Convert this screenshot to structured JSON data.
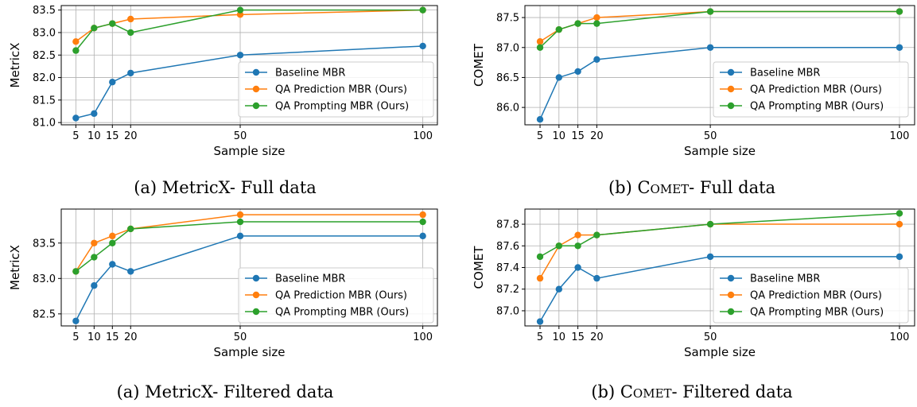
{
  "captions": [
    {
      "label": "(a)",
      "metric": "MetricX",
      "rest": "- Full data",
      "smallcaps": false
    },
    {
      "label": "(b)",
      "metric": "Comet",
      "rest": "- Full data",
      "smallcaps": true
    },
    {
      "label": "(a)",
      "metric": "MetricX",
      "rest": "- Filtered data",
      "smallcaps": false
    },
    {
      "label": "(b)",
      "metric": "Comet",
      "rest": "- Filtered data",
      "smallcaps": true
    }
  ],
  "colors": {
    "baseline": "#1f77b4",
    "qa_prediction": "#ff7f0e",
    "qa_prompting": "#2ca02c",
    "grid": "#b0b0b0"
  },
  "chart_data": [
    {
      "type": "line",
      "xlabel": "Sample size",
      "ylabel": "MetricX",
      "x": [
        5,
        10,
        15,
        20,
        50,
        100
      ],
      "xticks": [
        5,
        10,
        15,
        20,
        50,
        100
      ],
      "xlim": [
        1,
        104
      ],
      "ylim": [
        80.95,
        83.6
      ],
      "yticks": [
        "81.0",
        "81.5",
        "82.0",
        "82.5",
        "83.0",
        "83.5"
      ],
      "grid": true,
      "legend": "lower-right",
      "series": [
        {
          "name": "Baseline MBR",
          "values": [
            81.1,
            81.2,
            81.9,
            82.1,
            82.5,
            82.7
          ]
        },
        {
          "name": "QA Prediction MBR (Ours)",
          "values": [
            82.8,
            83.1,
            83.2,
            83.3,
            83.4,
            83.5
          ]
        },
        {
          "name": "QA Prompting MBR (Ours)",
          "values": [
            82.6,
            83.1,
            83.2,
            83.0,
            83.5,
            83.5
          ]
        }
      ]
    },
    {
      "type": "line",
      "xlabel": "Sample size",
      "ylabel": "COMET",
      "x": [
        5,
        10,
        15,
        20,
        50,
        100
      ],
      "xticks": [
        5,
        10,
        15,
        20,
        50,
        100
      ],
      "xlim": [
        1,
        104
      ],
      "ylim": [
        85.71,
        87.7
      ],
      "yticks": [
        "86.0",
        "86.5",
        "87.0",
        "87.5"
      ],
      "grid": true,
      "legend": "lower-right",
      "series": [
        {
          "name": "Baseline MBR",
          "values": [
            85.8,
            86.5,
            86.6,
            86.8,
            87.0,
            87.0
          ]
        },
        {
          "name": "QA Prediction MBR (Ours)",
          "values": [
            87.1,
            87.3,
            87.4,
            87.5,
            87.6,
            87.6
          ]
        },
        {
          "name": "QA Prompting MBR (Ours)",
          "values": [
            87.0,
            87.3,
            87.4,
            87.4,
            87.6,
            87.6
          ]
        }
      ]
    },
    {
      "type": "line",
      "xlabel": "Sample size",
      "ylabel": "MetricX",
      "x": [
        5,
        10,
        15,
        20,
        50,
        100
      ],
      "xticks": [
        5,
        10,
        15,
        20,
        50,
        100
      ],
      "xlim": [
        1,
        104
      ],
      "ylim": [
        82.33,
        83.98
      ],
      "yticks": [
        "82.5",
        "83.0",
        "83.5"
      ],
      "grid": true,
      "legend": "lower-right",
      "series": [
        {
          "name": "Baseline MBR",
          "values": [
            82.4,
            82.9,
            83.2,
            83.1,
            83.6,
            83.6
          ]
        },
        {
          "name": "QA Prediction MBR (Ours)",
          "values": [
            83.1,
            83.5,
            83.6,
            83.7,
            83.9,
            83.9
          ]
        },
        {
          "name": "QA Prompting MBR (Ours)",
          "values": [
            83.1,
            83.3,
            83.5,
            83.7,
            83.8,
            83.8
          ]
        }
      ]
    },
    {
      "type": "line",
      "xlabel": "Sample size",
      "ylabel": "COMET",
      "x": [
        5,
        10,
        15,
        20,
        50,
        100
      ],
      "xticks": [
        5,
        10,
        15,
        20,
        50,
        100
      ],
      "xlim": [
        1,
        104
      ],
      "ylim": [
        86.86,
        87.94
      ],
      "yticks": [
        "87.0",
        "87.2",
        "87.4",
        "87.6",
        "87.8"
      ],
      "grid": true,
      "legend": "lower-right",
      "series": [
        {
          "name": "Baseline MBR",
          "values": [
            86.9,
            87.2,
            87.4,
            87.3,
            87.5,
            87.5
          ]
        },
        {
          "name": "QA Prediction MBR (Ours)",
          "values": [
            87.3,
            87.6,
            87.7,
            87.7,
            87.8,
            87.8
          ]
        },
        {
          "name": "QA Prompting MBR (Ours)",
          "values": [
            87.5,
            87.6,
            87.6,
            87.7,
            87.8,
            87.9
          ]
        }
      ]
    }
  ]
}
